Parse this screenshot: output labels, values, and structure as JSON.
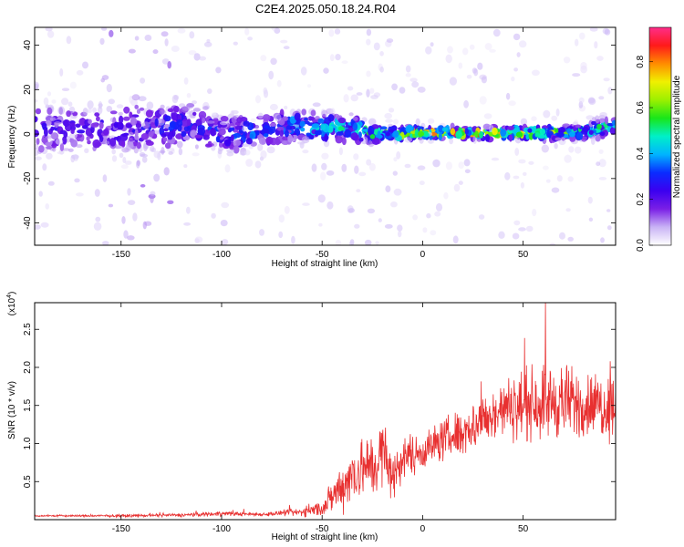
{
  "title": "C2E4.2025.050.18.24.R04",
  "colors": {
    "snr_line": "#e83030",
    "colormap": [
      "#ffffff",
      "#c9b3f5",
      "#7a1fe6",
      "#3b00f0",
      "#0a2cff",
      "#00b4ff",
      "#00f0c8",
      "#19e619",
      "#9cf000",
      "#f0f000",
      "#ff8c00",
      "#ff1a1a",
      "#ff2d8a"
    ]
  },
  "chart_data": [
    {
      "type": "heatmap",
      "title": "C2E4.2025.050.18.24.R04",
      "xlabel": "Height of straight line (km)",
      "ylabel": "Frequency (Hz)",
      "xlim": [
        -193,
        96
      ],
      "ylim": [
        -50,
        48
      ],
      "xticks": [
        -150,
        -100,
        -50,
        0,
        50
      ],
      "yticks": [
        -40,
        -20,
        0,
        20,
        40
      ],
      "colorbar": {
        "label": "Normalized spectral amplitude",
        "range": [
          0.0,
          0.95
        ],
        "ticks": [
          0.0,
          0.2,
          0.4,
          0.6,
          0.8
        ]
      },
      "ridge": {
        "x": [
          -193,
          -150,
          -120,
          -110,
          -100,
          -80,
          -65,
          -50,
          -35,
          -25,
          0,
          25,
          50,
          75,
          96
        ],
        "center_freq": [
          2,
          2,
          4,
          3,
          0,
          1,
          4,
          3,
          3,
          0,
          0.5,
          0.5,
          0.5,
          0.5,
          4
        ],
        "spread": [
          10,
          10,
          9,
          8,
          7,
          6,
          6,
          5,
          5,
          3,
          2,
          2,
          2,
          2.5,
          4
        ],
        "peak_amplitude": [
          0.25,
          0.25,
          0.3,
          0.28,
          0.35,
          0.35,
          0.4,
          0.45,
          0.5,
          0.6,
          0.9,
          0.85,
          0.8,
          0.55,
          0.5
        ]
      }
    },
    {
      "type": "line",
      "xlabel": "Height of straight line (km)",
      "ylabel": "SNR (10 * v/v)",
      "y_multiplier": "(x10^4)",
      "xlim": [
        -193,
        96
      ],
      "ylim": [
        0,
        2.85
      ],
      "xticks": [
        -150,
        -100,
        -50,
        0,
        50
      ],
      "yticks": [
        0.5,
        1.0,
        1.5,
        2.0,
        2.5
      ],
      "series": [
        {
          "x": [
            -193,
            -150,
            -120,
            -100,
            -80,
            -60,
            -50,
            -45,
            -40,
            -35,
            -30,
            -25,
            -20,
            -15,
            -10,
            0,
            10,
            20,
            30,
            40,
            50,
            60,
            70,
            80,
            96
          ],
          "y": [
            0.05,
            0.05,
            0.06,
            0.08,
            0.07,
            0.1,
            0.15,
            0.3,
            0.45,
            0.6,
            0.7,
            0.65,
            0.9,
            0.55,
            0.8,
            0.9,
            1.05,
            1.15,
            1.3,
            1.45,
            1.5,
            1.55,
            1.55,
            1.5,
            1.5
          ],
          "noise": [
            0.01,
            0.015,
            0.02,
            0.03,
            0.02,
            0.05,
            0.1,
            0.2,
            0.3,
            0.35,
            0.4,
            0.35,
            0.45,
            0.3,
            0.25,
            0.22,
            0.25,
            0.3,
            0.3,
            0.35,
            0.4,
            0.45,
            0.45,
            0.4,
            0.4
          ]
        }
      ]
    }
  ],
  "colorbar_label": "Normalized spectral amplitude",
  "snr_multiplier_base": "(x10",
  "snr_multiplier_exp": "4",
  "snr_multiplier_close": ")"
}
